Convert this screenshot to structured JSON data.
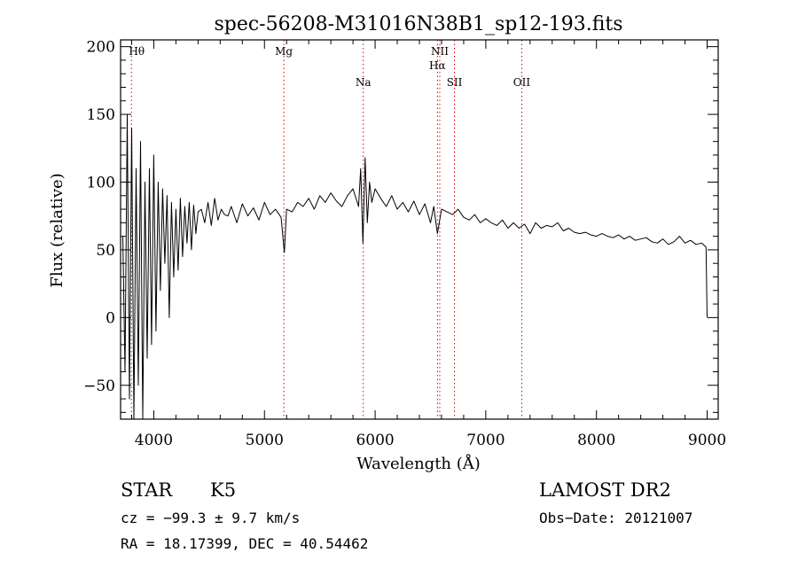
{
  "chart_data": {
    "type": "line",
    "title": "spec-56208-M31016N38B1_sp12-193.fits",
    "xlabel": "Wavelength (Å)",
    "ylabel": "Flux (relative)",
    "xlim": [
      3700,
      9100
    ],
    "ylim": [
      -75,
      205
    ],
    "x_ticks": [
      4000,
      5000,
      6000,
      7000,
      8000,
      9000
    ],
    "x_tick_labels": [
      "4000",
      "5000",
      "6000",
      "7000",
      "8000",
      "9000"
    ],
    "y_ticks": [
      200,
      150,
      100,
      50,
      0,
      -50
    ],
    "y_tick_labels": [
      "200",
      "150",
      "100",
      "50",
      "0",
      "−50"
    ],
    "x_minor_step": 200,
    "y_minor_step": 10,
    "series": [
      {
        "name": "spectrum",
        "color": "#000000",
        "x": [
          3720,
          3740,
          3760,
          3780,
          3800,
          3820,
          3840,
          3860,
          3880,
          3900,
          3920,
          3940,
          3960,
          3980,
          4000,
          4020,
          4040,
          4060,
          4080,
          4100,
          4120,
          4140,
          4160,
          4180,
          4200,
          4220,
          4240,
          4260,
          4280,
          4300,
          4320,
          4340,
          4360,
          4380,
          4400,
          4430,
          4460,
          4490,
          4520,
          4550,
          4580,
          4610,
          4640,
          4670,
          4700,
          4750,
          4800,
          4850,
          4900,
          4950,
          5000,
          5050,
          5100,
          5150,
          5180,
          5200,
          5250,
          5300,
          5350,
          5400,
          5450,
          5500,
          5550,
          5600,
          5650,
          5700,
          5750,
          5800,
          5850,
          5870,
          5890,
          5910,
          5930,
          5950,
          5970,
          6000,
          6050,
          6100,
          6150,
          6200,
          6250,
          6300,
          6350,
          6400,
          6450,
          6500,
          6530,
          6563,
          6600,
          6650,
          6700,
          6750,
          6800,
          6850,
          6900,
          6950,
          7000,
          7050,
          7100,
          7150,
          7200,
          7250,
          7300,
          7350,
          7400,
          7450,
          7500,
          7550,
          7600,
          7650,
          7700,
          7750,
          7800,
          7850,
          7900,
          7950,
          8000,
          8050,
          8100,
          8150,
          8200,
          8250,
          8300,
          8350,
          8400,
          8450,
          8500,
          8550,
          8600,
          8650,
          8700,
          8750,
          8800,
          8850,
          8900,
          8950,
          8990,
          9000
        ],
        "y": [
          60,
          -40,
          150,
          -60,
          140,
          -75,
          110,
          -50,
          130,
          -75,
          100,
          -30,
          110,
          -20,
          120,
          -10,
          100,
          20,
          95,
          40,
          90,
          0,
          85,
          30,
          80,
          35,
          88,
          45,
          82,
          55,
          85,
          50,
          83,
          62,
          78,
          80,
          70,
          85,
          68,
          88,
          72,
          80,
          76,
          75,
          82,
          70,
          84,
          75,
          81,
          72,
          85,
          76,
          80,
          74,
          48,
          80,
          78,
          85,
          82,
          88,
          80,
          90,
          85,
          92,
          86,
          82,
          90,
          95,
          82,
          110,
          55,
          118,
          70,
          100,
          85,
          95,
          88,
          82,
          90,
          80,
          85,
          78,
          86,
          76,
          84,
          70,
          82,
          62,
          80,
          78,
          76,
          80,
          74,
          72,
          76,
          70,
          73,
          70,
          68,
          72,
          66,
          70,
          66,
          69,
          62,
          70,
          66,
          68,
          67,
          70,
          64,
          66,
          63,
          62,
          63,
          61,
          60,
          62,
          60,
          59,
          61,
          58,
          60,
          57,
          58,
          59,
          56,
          55,
          58,
          54,
          56,
          60,
          55,
          57,
          54,
          55,
          52,
          0
        ]
      }
    ],
    "annotations": [
      {
        "label": "Hθ",
        "x": 3798,
        "label_pos": "top"
      },
      {
        "label": "Mg",
        "x": 5175,
        "label_pos": "top"
      },
      {
        "label": "Na",
        "x": 5893,
        "label_pos": "mid"
      },
      {
        "label": "NII",
        "x": 6584,
        "label_pos": "top"
      },
      {
        "label": "Hα",
        "x": 6563,
        "label_pos": "upper"
      },
      {
        "label": "SII",
        "x": 6717,
        "label_pos": "mid"
      },
      {
        "label": "OII",
        "x": 7325,
        "label_pos": "mid"
      }
    ],
    "line_color": "#e00000"
  },
  "info": {
    "object_class": "STAR",
    "subclass": "K5",
    "survey": "LAMOST DR2",
    "cz": "cz = −99.3 ± 9.7 km/s",
    "obs_date": "Obs−Date: 20121007",
    "coords": "RA =  18.17399, DEC =  40.54462"
  }
}
